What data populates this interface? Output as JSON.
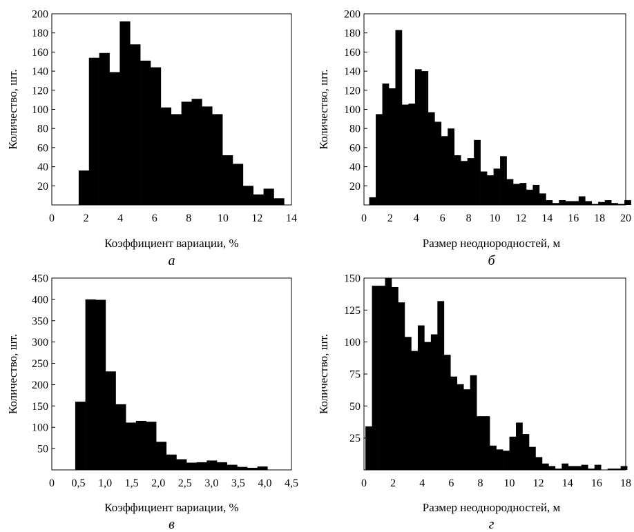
{
  "chart_data": [
    {
      "id": "a",
      "type": "bar",
      "panel_letter": "а",
      "xlabel": "Коэффициент вариации, %",
      "ylabel": "Количество, шт.",
      "xlim": [
        0,
        14
      ],
      "ylim": [
        0,
        200
      ],
      "xticks": [
        {
          "v": 0,
          "label": "0"
        },
        {
          "v": 2,
          "label": "2"
        },
        {
          "v": 4,
          "label": "4"
        },
        {
          "v": 6,
          "label": "6"
        },
        {
          "v": 8,
          "label": "8"
        },
        {
          "v": 10,
          "label": "10"
        },
        {
          "v": 12,
          "label": "12"
        },
        {
          "v": 14,
          "label": "14"
        }
      ],
      "yticks": [
        {
          "v": 20,
          "label": "20"
        },
        {
          "v": 40,
          "label": "40"
        },
        {
          "v": 60,
          "label": "60"
        },
        {
          "v": 80,
          "label": "80"
        },
        {
          "v": 100,
          "label": "100"
        },
        {
          "v": 120,
          "label": "120"
        },
        {
          "v": 140,
          "label": "140"
        },
        {
          "v": 160,
          "label": "160"
        },
        {
          "v": 180,
          "label": "180"
        },
        {
          "v": 200,
          "label": "200"
        }
      ],
      "bins": {
        "start": 1.57,
        "width": 0.6,
        "values": [
          36,
          154,
          159,
          139,
          192,
          168,
          151,
          144,
          102,
          95,
          108,
          111,
          103,
          95,
          52,
          43,
          20,
          11,
          17,
          7
        ]
      },
      "grid": false,
      "color": "#000000"
    },
    {
      "id": "b",
      "type": "bar",
      "panel_letter": "б",
      "xlabel": "Размер неоднородностей, м",
      "ylabel": "Количество, шт.",
      "xlim": [
        0,
        20
      ],
      "ylim": [
        0,
        200
      ],
      "xticks": [
        {
          "v": 0,
          "label": "0"
        },
        {
          "v": 2,
          "label": "2"
        },
        {
          "v": 4,
          "label": "4"
        },
        {
          "v": 6,
          "label": "6"
        },
        {
          "v": 8,
          "label": "8"
        },
        {
          "v": 10,
          "label": "10"
        },
        {
          "v": 12,
          "label": "12"
        },
        {
          "v": 14,
          "label": "14"
        },
        {
          "v": 16,
          "label": "16"
        },
        {
          "v": 18,
          "label": "18"
        },
        {
          "v": 20,
          "label": "20"
        }
      ],
      "yticks": [
        {
          "v": 20,
          "label": "20"
        },
        {
          "v": 40,
          "label": "40"
        },
        {
          "v": 60,
          "label": "60"
        },
        {
          "v": 80,
          "label": "80"
        },
        {
          "v": 100,
          "label": "100"
        },
        {
          "v": 120,
          "label": "120"
        },
        {
          "v": 140,
          "label": "140"
        },
        {
          "v": 160,
          "label": "160"
        },
        {
          "v": 180,
          "label": "180"
        },
        {
          "v": 200,
          "label": "200"
        }
      ],
      "bins": {
        "start": 0.4,
        "width": 0.5,
        "values": [
          8,
          95,
          127,
          122,
          183,
          105,
          106,
          142,
          140,
          97,
          87,
          72,
          80,
          52,
          46,
          49,
          68,
          35,
          31,
          38,
          51,
          27,
          22,
          23,
          16,
          21,
          12,
          5,
          2,
          5,
          4,
          4,
          9,
          4,
          1,
          3,
          5,
          2,
          1,
          5
        ]
      },
      "grid": false,
      "color": "#000000"
    },
    {
      "id": "c",
      "type": "bar",
      "panel_letter": "в",
      "xlabel": "Коэффициент вариации, %",
      "ylabel": "Количество, шт.",
      "xlim": [
        0,
        4.5
      ],
      "ylim": [
        0,
        450
      ],
      "xticks": [
        {
          "v": 0,
          "label": "0"
        },
        {
          "v": 0.5,
          "label": "0,5"
        },
        {
          "v": 1,
          "label": "1,0"
        },
        {
          "v": 1.5,
          "label": "1,5"
        },
        {
          "v": 2,
          "label": "2,0"
        },
        {
          "v": 2.5,
          "label": "2,5"
        },
        {
          "v": 3,
          "label": "3,0"
        },
        {
          "v": 3.5,
          "label": "3,5"
        },
        {
          "v": 4,
          "label": "4,0"
        },
        {
          "v": 4.5,
          "label": "4,5"
        }
      ],
      "yticks": [
        {
          "v": 50,
          "label": "50"
        },
        {
          "v": 100,
          "label": "100"
        },
        {
          "v": 150,
          "label": "150"
        },
        {
          "v": 200,
          "label": "200"
        },
        {
          "v": 250,
          "label": "250"
        },
        {
          "v": 300,
          "label": "300"
        },
        {
          "v": 350,
          "label": "350"
        },
        {
          "v": 400,
          "label": "400"
        },
        {
          "v": 450,
          "label": "450"
        }
      ],
      "bins": {
        "start": 0.44,
        "width": 0.19,
        "values": [
          160,
          400,
          399,
          231,
          154,
          111,
          115,
          113,
          66,
          36,
          25,
          17,
          18,
          22,
          18,
          12,
          7,
          5,
          8
        ]
      },
      "grid": false,
      "color": "#000000"
    },
    {
      "id": "d",
      "type": "bar",
      "panel_letter": "г",
      "xlabel": "Размер неоднородностей, м",
      "ylabel": "Количество, шт.",
      "xlim": [
        0,
        18
      ],
      "ylim": [
        0,
        150
      ],
      "xticks": [
        {
          "v": 0,
          "label": "0"
        },
        {
          "v": 2,
          "label": "2"
        },
        {
          "v": 4,
          "label": "4"
        },
        {
          "v": 6,
          "label": "6"
        },
        {
          "v": 8,
          "label": "8"
        },
        {
          "v": 10,
          "label": "10"
        },
        {
          "v": 12,
          "label": "12"
        },
        {
          "v": 14,
          "label": "14"
        },
        {
          "v": 16,
          "label": "16"
        },
        {
          "v": 18,
          "label": "18"
        }
      ],
      "yticks": [
        {
          "v": 25,
          "label": "25"
        },
        {
          "v": 50,
          "label": "50"
        },
        {
          "v": 75,
          "label": "75"
        },
        {
          "v": 100,
          "label": "100"
        },
        {
          "v": 125,
          "label": "125"
        },
        {
          "v": 150,
          "label": "150"
        }
      ],
      "bins": {
        "start": 0.1,
        "width": 0.45,
        "values": [
          34,
          144,
          144,
          150,
          143,
          131,
          104,
          93,
          113,
          100,
          106,
          132,
          90,
          73,
          67,
          63,
          74,
          42,
          42,
          19,
          16,
          15,
          26,
          37,
          28,
          18,
          10,
          5,
          3,
          1,
          5,
          3,
          3,
          4,
          1,
          4,
          0,
          1,
          1,
          3
        ]
      },
      "grid": false,
      "color": "#000000"
    }
  ]
}
